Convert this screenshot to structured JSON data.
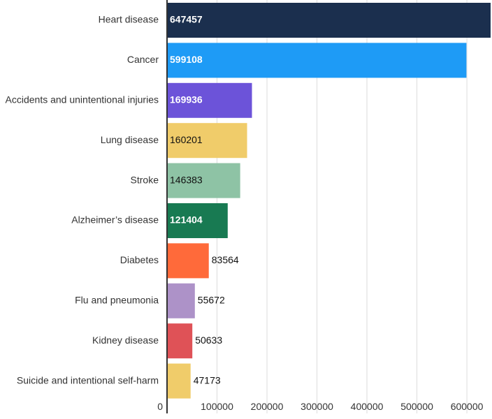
{
  "chart_data": {
    "type": "bar",
    "orientation": "horizontal",
    "categories": [
      "Heart disease",
      "Cancer",
      "Accidents and unintentional injuries",
      "Lung disease",
      "Stroke",
      "Alzheimer’s disease",
      "Diabetes",
      "Flu and pneumonia",
      "Kidney disease",
      "Suicide and intentional self-harm"
    ],
    "values": [
      647457,
      599108,
      169936,
      160201,
      146383,
      121404,
      83564,
      55672,
      50633,
      47173
    ],
    "value_labels": [
      "647457",
      "599108",
      "169936",
      "160201",
      "146383",
      "121404",
      "83564",
      "55672",
      "50633",
      "47173"
    ],
    "colors": [
      "#1b2f4e",
      "#1e9bf6",
      "#6c53d9",
      "#f0cc6a",
      "#8ec3a5",
      "#187a52",
      "#ff6a3a",
      "#ad92c8",
      "#df5257",
      "#f0cc6a"
    ],
    "label_colors": [
      "#ffffff",
      "#ffffff",
      "#ffffff",
      "#111111",
      "#111111",
      "#ffffff",
      "#111111",
      "#111111",
      "#111111",
      "#111111"
    ],
    "xticks": [
      0,
      100000,
      200000,
      300000,
      400000,
      500000,
      600000
    ],
    "xtick_labels": [
      "0",
      "100000",
      "200000",
      "300000",
      "400000",
      "500000",
      "600000"
    ],
    "xlim": [
      0,
      650000
    ],
    "grid": true,
    "title": "",
    "xlabel": "",
    "ylabel": ""
  }
}
